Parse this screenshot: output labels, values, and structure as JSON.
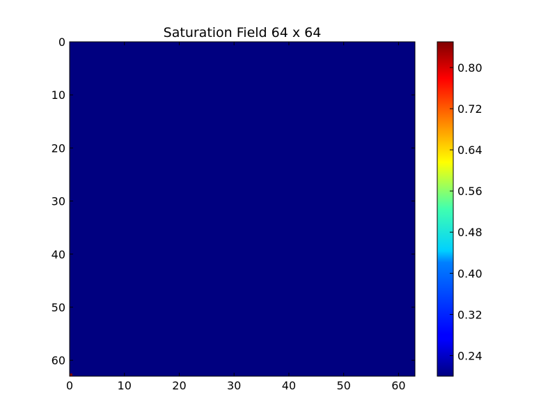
{
  "chart_data": {
    "type": "heatmap",
    "title": "Saturation Field 64 x 64",
    "xlabel": "",
    "ylabel": "",
    "grid": false,
    "colormap": "jet",
    "x_range": [
      0,
      63
    ],
    "y_range": [
      0,
      63
    ],
    "y_inverted": true,
    "x_ticks": [
      "0",
      "10",
      "20",
      "30",
      "40",
      "50",
      "60"
    ],
    "y_ticks": [
      "0",
      "10",
      "20",
      "30",
      "40",
      "50",
      "60"
    ],
    "background_value": 0.2,
    "background_color": "#000080",
    "highlight_cells": [
      {
        "row": 63,
        "col": 0,
        "value": 0.85,
        "color": "#800000"
      }
    ],
    "colorbar": {
      "range": [
        0.2,
        0.85
      ],
      "tick_values": [
        0.24,
        0.32,
        0.4,
        0.48,
        0.56,
        0.64,
        0.72,
        0.8
      ],
      "tick_labels": [
        "0.24",
        "0.32",
        "0.40",
        "0.48",
        "0.56",
        "0.64",
        "0.72",
        "0.80"
      ]
    }
  }
}
